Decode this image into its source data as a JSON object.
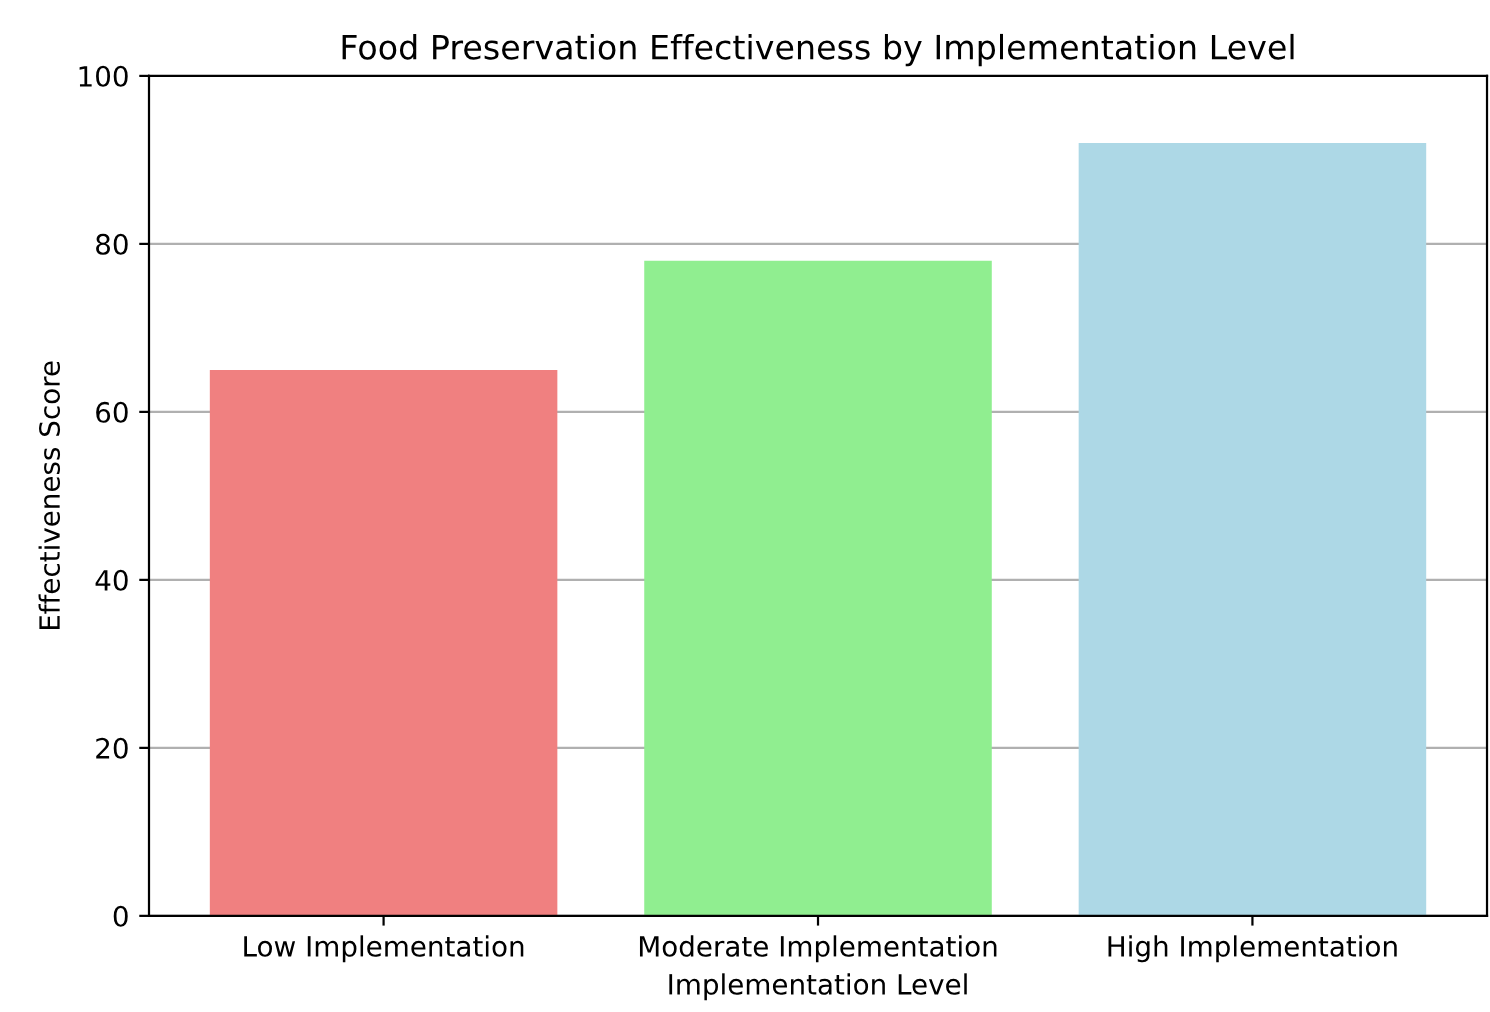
{
  "chart_data": {
    "type": "bar",
    "title": "Food Preservation Effectiveness by Implementation Level",
    "xlabel": "Implementation Level",
    "ylabel": "Effectiveness Score",
    "categories": [
      "Low Implementation",
      "Moderate Implementation",
      "High Implementation"
    ],
    "values": [
      65,
      78,
      92
    ],
    "colors": [
      "#f08080",
      "#90ee90",
      "#add8e6"
    ],
    "ylim": [
      0,
      100
    ],
    "yticks": [
      0,
      20,
      40,
      60,
      80,
      100
    ],
    "grid": "y"
  }
}
